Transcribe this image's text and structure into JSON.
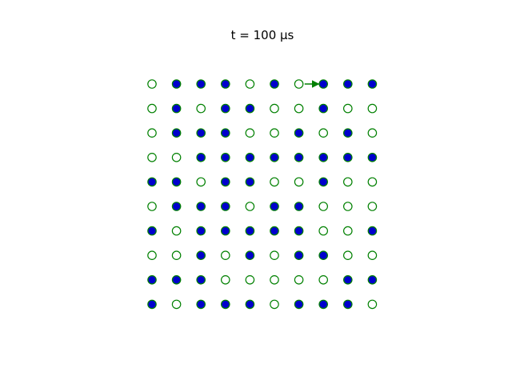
{
  "figure": {
    "title": "t = 100 µs"
  },
  "colors": {
    "occupied_fill": "#0000cc",
    "site_edge": "#008000",
    "empty_fill": "#ffffff",
    "arrow": "#008000"
  },
  "lattice": {
    "rows": 10,
    "cols": 10,
    "occupancy": [
      [
        0,
        1,
        1,
        1,
        0,
        1,
        0,
        1,
        1,
        1
      ],
      [
        0,
        1,
        0,
        1,
        1,
        0,
        0,
        1,
        0,
        0
      ],
      [
        0,
        1,
        1,
        1,
        0,
        0,
        1,
        0,
        1,
        0
      ],
      [
        0,
        0,
        1,
        1,
        1,
        1,
        1,
        1,
        1,
        1
      ],
      [
        1,
        1,
        0,
        1,
        1,
        0,
        0,
        1,
        0,
        0
      ],
      [
        0,
        1,
        1,
        1,
        0,
        1,
        1,
        0,
        0,
        0
      ],
      [
        1,
        0,
        1,
        1,
        1,
        1,
        1,
        0,
        0,
        1
      ],
      [
        0,
        0,
        1,
        0,
        1,
        0,
        1,
        1,
        0,
        0
      ],
      [
        1,
        1,
        1,
        0,
        0,
        0,
        0,
        0,
        1,
        1
      ],
      [
        1,
        0,
        1,
        1,
        1,
        0,
        1,
        1,
        1,
        0
      ]
    ],
    "moves": [
      {
        "from": [
          0,
          6
        ],
        "to": [
          0,
          7
        ]
      }
    ]
  }
}
